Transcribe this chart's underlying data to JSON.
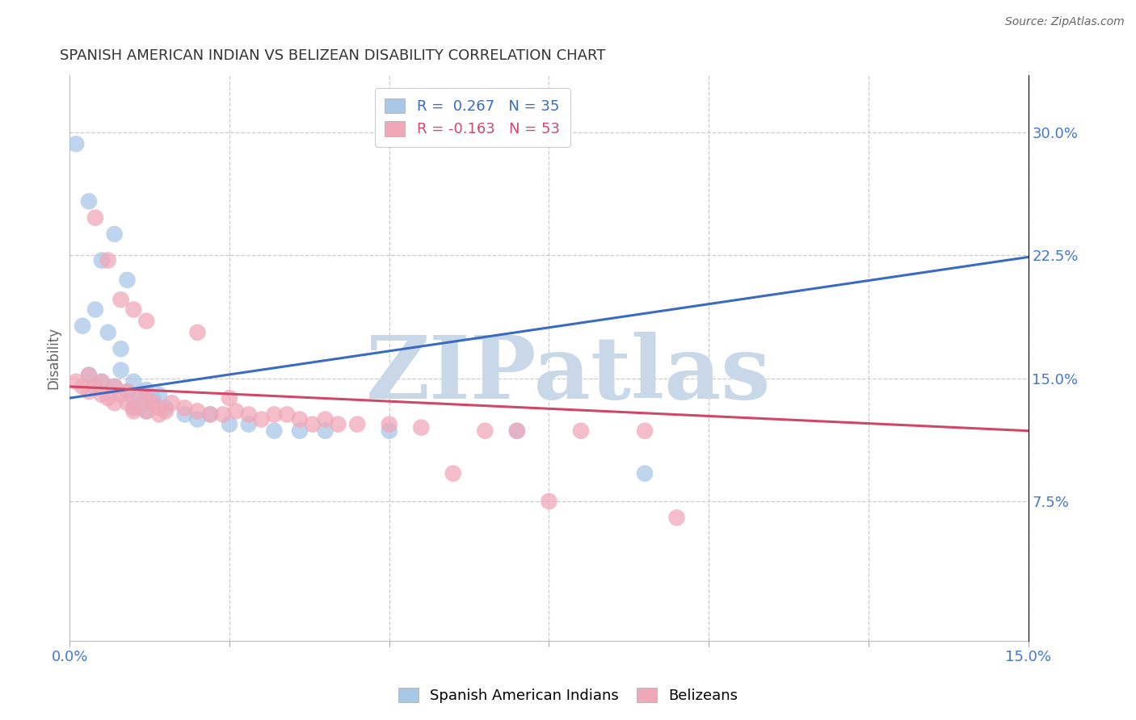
{
  "title": "SPANISH AMERICAN INDIAN VS BELIZEAN DISABILITY CORRELATION CHART",
  "source": "Source: ZipAtlas.com",
  "ylabel": "Disability",
  "R_blue": 0.267,
  "N_blue": 35,
  "R_pink": -0.163,
  "N_pink": 53,
  "blue_color": "#a8c8e8",
  "pink_color": "#f0a8b8",
  "trend_blue": "#3a6bbf",
  "trend_pink": "#d04868",
  "watermark_color": "#c8d8e8",
  "xlim": [
    0.0,
    0.15
  ],
  "ylim": [
    -0.01,
    0.335
  ],
  "yticks": [
    0.075,
    0.15,
    0.225,
    0.3
  ],
  "ytick_labels": [
    "7.5%",
    "15.0%",
    "22.5%",
    "30.0%"
  ],
  "xticks": [
    0.0,
    0.025,
    0.05,
    0.075,
    0.1,
    0.125,
    0.15
  ],
  "xtick_labels": [
    "0.0%",
    "",
    "",
    "",
    "",
    "",
    "15.0%"
  ],
  "legend_label_blue": "Spanish American Indians",
  "legend_label_pink": "Belizeans",
  "blue_scatter_x": [
    0.003,
    0.007,
    0.005,
    0.009,
    0.004,
    0.006,
    0.008,
    0.002,
    0.003,
    0.005,
    0.007,
    0.009,
    0.01,
    0.012,
    0.011,
    0.013,
    0.008,
    0.01,
    0.012,
    0.014,
    0.01,
    0.012,
    0.015,
    0.018,
    0.02,
    0.022,
    0.025,
    0.028,
    0.032,
    0.036,
    0.04,
    0.05,
    0.07,
    0.09,
    0.001
  ],
  "blue_scatter_y": [
    0.258,
    0.238,
    0.222,
    0.21,
    0.192,
    0.178,
    0.168,
    0.182,
    0.152,
    0.148,
    0.145,
    0.142,
    0.138,
    0.14,
    0.133,
    0.138,
    0.155,
    0.148,
    0.143,
    0.14,
    0.132,
    0.13,
    0.132,
    0.128,
    0.125,
    0.128,
    0.122,
    0.122,
    0.118,
    0.118,
    0.118,
    0.118,
    0.118,
    0.092,
    0.293
  ],
  "pink_scatter_x": [
    0.001,
    0.002,
    0.003,
    0.004,
    0.005,
    0.006,
    0.007,
    0.008,
    0.009,
    0.01,
    0.011,
    0.012,
    0.013,
    0.014,
    0.015,
    0.003,
    0.005,
    0.007,
    0.009,
    0.01,
    0.012,
    0.014,
    0.016,
    0.018,
    0.02,
    0.022,
    0.024,
    0.026,
    0.028,
    0.03,
    0.032,
    0.034,
    0.036,
    0.038,
    0.04,
    0.042,
    0.045,
    0.05,
    0.055,
    0.065,
    0.07,
    0.08,
    0.09,
    0.004,
    0.006,
    0.008,
    0.01,
    0.012,
    0.02,
    0.025,
    0.06,
    0.075,
    0.095
  ],
  "pink_scatter_y": [
    0.148,
    0.145,
    0.142,
    0.145,
    0.14,
    0.138,
    0.135,
    0.14,
    0.135,
    0.132,
    0.14,
    0.138,
    0.135,
    0.132,
    0.13,
    0.152,
    0.148,
    0.145,
    0.142,
    0.13,
    0.13,
    0.128,
    0.135,
    0.132,
    0.13,
    0.128,
    0.128,
    0.13,
    0.128,
    0.125,
    0.128,
    0.128,
    0.125,
    0.122,
    0.125,
    0.122,
    0.122,
    0.122,
    0.12,
    0.118,
    0.118,
    0.118,
    0.118,
    0.248,
    0.222,
    0.198,
    0.192,
    0.185,
    0.178,
    0.138,
    0.092,
    0.075,
    0.065
  ],
  "blue_line_x": [
    0.0,
    0.15
  ],
  "blue_line_y": [
    0.138,
    0.224
  ],
  "pink_line_x": [
    0.0,
    0.15
  ],
  "pink_line_y": [
    0.145,
    0.118
  ]
}
